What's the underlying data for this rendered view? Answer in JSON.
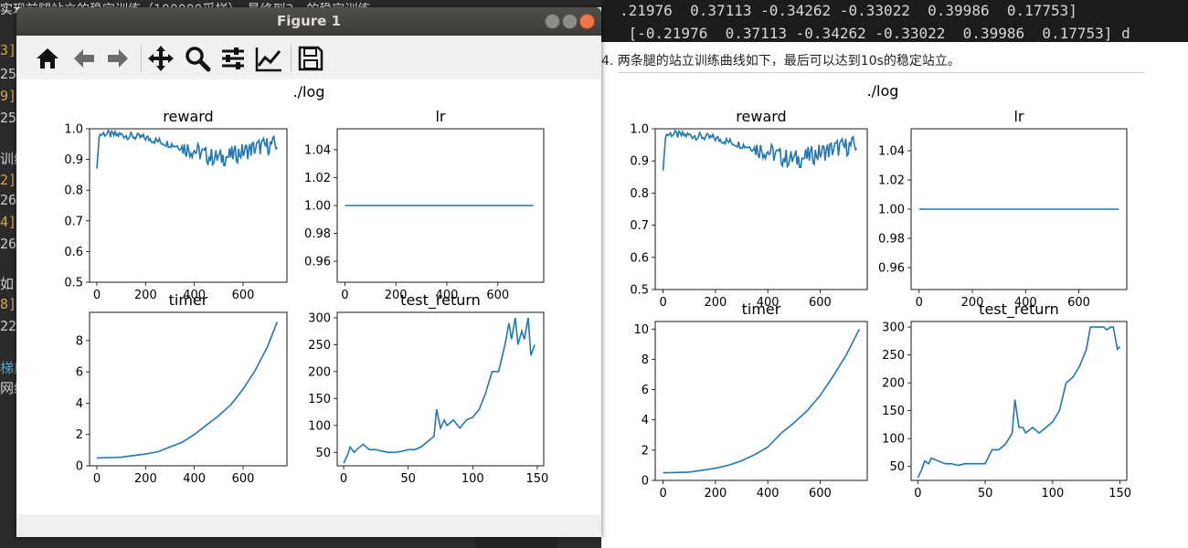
{
  "background": {
    "editor_top_text": "实现前腿站立的稳定训练（100000采样），最终到3一的稳定训练",
    "gutter_marks": [
      "3]",
      "25",
      "9]",
      "25",
      "训练",
      "2]",
      "26",
      "4]",
      "26",
      "如",
      "8]",
      "22",
      "梯度",
      "网络"
    ]
  },
  "terminal": {
    "lines": [
      ".21976  0.37113 -0.34262 -0.33022  0.39986  0.17753]",
      " [-0.21976  0.37113 -0.34262 -0.33022  0.39986  0.17753] d"
    ]
  },
  "doc": {
    "caption": "4. 两条腿的站立训练曲线如下，最后可以达到10s的稳定站立。"
  },
  "window": {
    "title": "Figure 1",
    "toolbar_icons": [
      "home-icon",
      "back-icon",
      "forward-icon",
      "pan-icon",
      "zoom-icon",
      "configure-subplots-icon",
      "edit-axis-icon",
      "save-icon"
    ]
  },
  "chart_data": [
    {
      "figure": "window",
      "suptitle": "./log",
      "panels": [
        {
          "title": "reward",
          "type": "line",
          "xlim": [
            -30,
            780
          ],
          "ylim": [
            0.5,
            1.0
          ],
          "xticks": [
            0,
            200,
            400,
            600
          ],
          "yticks": [
            0.5,
            0.6,
            0.7,
            0.8,
            0.9,
            1.0
          ],
          "ytick_labels": [
            "0.5",
            "0.6",
            "0.7",
            "0.8",
            "0.9",
            "1.0"
          ],
          "noisy": true,
          "x": [
            0,
            10,
            30,
            60,
            100,
            150,
            200,
            250,
            300,
            350,
            400,
            430,
            460,
            500,
            540,
            580,
            620,
            660,
            700,
            740
          ],
          "y": [
            0.87,
            0.98,
            0.985,
            0.98,
            0.98,
            0.975,
            0.97,
            0.96,
            0.95,
            0.94,
            0.93,
            0.92,
            0.91,
            0.905,
            0.91,
            0.92,
            0.93,
            0.94,
            0.945,
            0.95
          ]
        },
        {
          "title": "lr",
          "type": "line",
          "xlim": [
            -30,
            780
          ],
          "ylim": [
            0.945,
            1.055
          ],
          "xticks": [
            0,
            200,
            400,
            600
          ],
          "yticks": [
            0.96,
            0.98,
            1.0,
            1.02,
            1.04
          ],
          "ytick_labels": [
            "0.96",
            "0.98",
            "1.00",
            "1.02",
            "1.04"
          ],
          "x": [
            0,
            740
          ],
          "y": [
            1.0,
            1.0
          ]
        },
        {
          "title": "timer",
          "type": "line",
          "xlim": [
            -30,
            780
          ],
          "ylim": [
            0,
            9.8
          ],
          "xticks": [
            0,
            200,
            400,
            600
          ],
          "yticks": [
            0,
            2,
            4,
            6,
            8
          ],
          "ytick_labels": [
            "0",
            "2",
            "4",
            "6",
            "8"
          ],
          "x": [
            0,
            100,
            200,
            250,
            300,
            350,
            400,
            450,
            500,
            550,
            600,
            650,
            700,
            740
          ],
          "y": [
            0.5,
            0.55,
            0.75,
            0.9,
            1.2,
            1.5,
            2.0,
            2.6,
            3.2,
            3.9,
            4.9,
            6.1,
            7.6,
            9.2
          ]
        },
        {
          "title": "test_return",
          "type": "line",
          "xlim": [
            -5,
            155
          ],
          "ylim": [
            25,
            310
          ],
          "xticks": [
            0,
            50,
            100,
            150
          ],
          "yticks": [
            50,
            100,
            150,
            200,
            250,
            300
          ],
          "ytick_labels": [
            "50",
            "100",
            "150",
            "200",
            "250",
            "300"
          ],
          "x": [
            0,
            3,
            5,
            8,
            10,
            15,
            20,
            25,
            30,
            35,
            40,
            45,
            50,
            55,
            60,
            65,
            70,
            72,
            75,
            78,
            80,
            85,
            90,
            95,
            100,
            105,
            110,
            115,
            120,
            125,
            128,
            130,
            133,
            135,
            138,
            140,
            143,
            145,
            148
          ],
          "y": [
            30,
            45,
            60,
            50,
            55,
            65,
            55,
            55,
            52,
            50,
            50,
            52,
            55,
            55,
            60,
            70,
            80,
            130,
            95,
            110,
            100,
            110,
            95,
            110,
            115,
            130,
            160,
            200,
            200,
            250,
            290,
            260,
            300,
            250,
            275,
            260,
            300,
            230,
            250
          ]
        }
      ]
    },
    {
      "figure": "document",
      "suptitle": "./log",
      "panels": [
        {
          "title": "reward",
          "type": "line",
          "xlim": [
            -30,
            780
          ],
          "ylim": [
            0.5,
            1.0
          ],
          "xticks": [
            0,
            200,
            400,
            600
          ],
          "yticks": [
            0.5,
            0.6,
            0.7,
            0.8,
            0.9,
            1.0
          ],
          "ytick_labels": [
            "0.5",
            "0.6",
            "0.7",
            "0.8",
            "0.9",
            "1.0"
          ],
          "noisy": true,
          "x": [
            0,
            10,
            30,
            60,
            100,
            150,
            200,
            250,
            300,
            350,
            400,
            430,
            460,
            500,
            540,
            580,
            620,
            660,
            700,
            740
          ],
          "y": [
            0.87,
            0.98,
            0.985,
            0.98,
            0.98,
            0.975,
            0.97,
            0.96,
            0.95,
            0.94,
            0.93,
            0.92,
            0.91,
            0.905,
            0.91,
            0.92,
            0.93,
            0.94,
            0.945,
            0.95
          ]
        },
        {
          "title": "lr",
          "type": "line",
          "xlim": [
            -30,
            780
          ],
          "ylim": [
            0.945,
            1.055
          ],
          "xticks": [
            0,
            200,
            400,
            600
          ],
          "yticks": [
            0.96,
            0.98,
            1.0,
            1.02,
            1.04
          ],
          "ytick_labels": [
            "0.96",
            "0.98",
            "1.00",
            "1.02",
            "1.04"
          ],
          "x": [
            0,
            750
          ],
          "y": [
            1.0,
            1.0
          ]
        },
        {
          "title": "timer",
          "type": "line",
          "xlim": [
            -30,
            780
          ],
          "ylim": [
            0,
            10.5
          ],
          "xticks": [
            0,
            200,
            400,
            600
          ],
          "yticks": [
            0,
            2,
            4,
            6,
            8,
            10
          ],
          "ytick_labels": [
            "0",
            "2",
            "4",
            "6",
            "8",
            "10"
          ],
          "x": [
            0,
            100,
            200,
            250,
            300,
            350,
            400,
            450,
            500,
            550,
            600,
            650,
            700,
            750
          ],
          "y": [
            0.5,
            0.55,
            0.8,
            1.0,
            1.3,
            1.7,
            2.2,
            3.1,
            3.8,
            4.6,
            5.6,
            6.9,
            8.3,
            10.0
          ]
        },
        {
          "title": "test_return",
          "type": "line",
          "xlim": [
            -5,
            155
          ],
          "ylim": [
            25,
            310
          ],
          "xticks": [
            0,
            50,
            100,
            150
          ],
          "yticks": [
            50,
            100,
            150,
            200,
            250,
            300
          ],
          "ytick_labels": [
            "50",
            "100",
            "150",
            "200",
            "250",
            "300"
          ],
          "x": [
            0,
            3,
            5,
            8,
            10,
            15,
            20,
            25,
            30,
            35,
            40,
            45,
            50,
            55,
            60,
            65,
            70,
            72,
            75,
            78,
            80,
            85,
            90,
            95,
            100,
            105,
            110,
            115,
            120,
            125,
            128,
            130,
            133,
            135,
            138,
            140,
            143,
            145,
            148,
            150
          ],
          "y": [
            30,
            45,
            60,
            55,
            65,
            60,
            55,
            55,
            52,
            55,
            55,
            55,
            55,
            80,
            80,
            90,
            110,
            170,
            120,
            120,
            110,
            120,
            110,
            120,
            130,
            150,
            200,
            210,
            230,
            260,
            300,
            300,
            300,
            300,
            300,
            295,
            300,
            300,
            260,
            265
          ]
        }
      ]
    }
  ]
}
